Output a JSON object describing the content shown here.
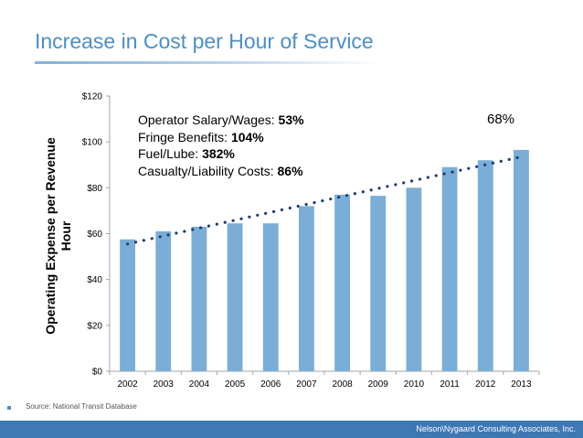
{
  "slide": {
    "title": "Increase in Cost per Hour of Service",
    "source": "Source: National Transit Database",
    "footer": "Nelson\\Nygaard Consulting Associates, Inc."
  },
  "chart_data": {
    "type": "bar",
    "categories": [
      "2002",
      "2003",
      "2004",
      "2005",
      "2006",
      "2007",
      "2008",
      "2009",
      "2010",
      "2011",
      "2012",
      "2013"
    ],
    "values": [
      57.5,
      61,
      63,
      64.5,
      64.5,
      72,
      77,
      76.5,
      80,
      89,
      92,
      96.5
    ],
    "title": "",
    "ylabel": "Operating Expense per Revenue Hour",
    "xlabel": "",
    "ylim": [
      0,
      120
    ],
    "yticks": [
      "$0",
      "$20",
      "$40",
      "$60",
      "$80",
      "$100",
      "$120"
    ],
    "ytick_values": [
      0,
      20,
      40,
      60,
      80,
      100,
      120
    ],
    "trendline": {
      "style": "dotted",
      "start_value": 55.5,
      "end_value": 93.5
    },
    "bar_color": "#7aaed6",
    "trend_color": "#1f3a78",
    "grid": false,
    "annotations": {
      "lines": [
        {
          "label": "Operator Salary/Wages: ",
          "value": "53%"
        },
        {
          "label": "Fringe Benefits: ",
          "value": "104%"
        },
        {
          "label": "Fuel/Lube: ",
          "value": "382%"
        },
        {
          "label": "Casualty/Liability Costs: ",
          "value": "86%"
        }
      ],
      "total_increase": "68%"
    }
  }
}
